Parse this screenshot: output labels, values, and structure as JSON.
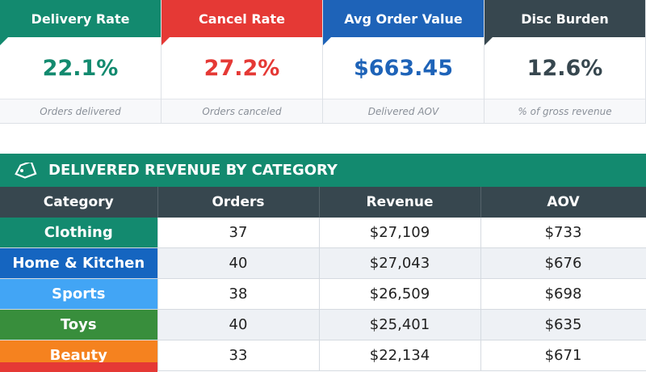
{
  "kpis": [
    {
      "title": "Delivery Rate",
      "value": "22.1%",
      "note": "Orders delivered",
      "color": "#138a6f"
    },
    {
      "title": "Cancel Rate",
      "value": "27.2%",
      "note": "Orders canceled",
      "color": "#e53935"
    },
    {
      "title": "Avg Order Value",
      "value": "$663.45",
      "note": "Delivered AOV",
      "color": "#1e63b8"
    },
    {
      "title": "Disc Burden",
      "value": "12.6%",
      "note": "% of gross revenue",
      "color": "#37474f"
    }
  ],
  "table": {
    "title": "DELIVERED REVENUE BY CATEGORY",
    "headers": [
      "Category",
      "Orders",
      "Revenue",
      "AOV"
    ],
    "rows": [
      {
        "cells": [
          "Clothing",
          "37",
          "$27,109",
          "$733"
        ],
        "color": "#138a6f"
      },
      {
        "cells": [
          "Home & Kitchen",
          "40",
          "$27,043",
          "$676"
        ],
        "color": "#1565c0"
      },
      {
        "cells": [
          "Sports",
          "38",
          "$26,509",
          "$698"
        ],
        "color": "#42a5f5"
      },
      {
        "cells": [
          "Toys",
          "40",
          "$25,401",
          "$635"
        ],
        "color": "#388e3c"
      },
      {
        "cells": [
          "Beauty",
          "33",
          "$22,134",
          "$671"
        ],
        "color": "#f5821f"
      }
    ]
  }
}
